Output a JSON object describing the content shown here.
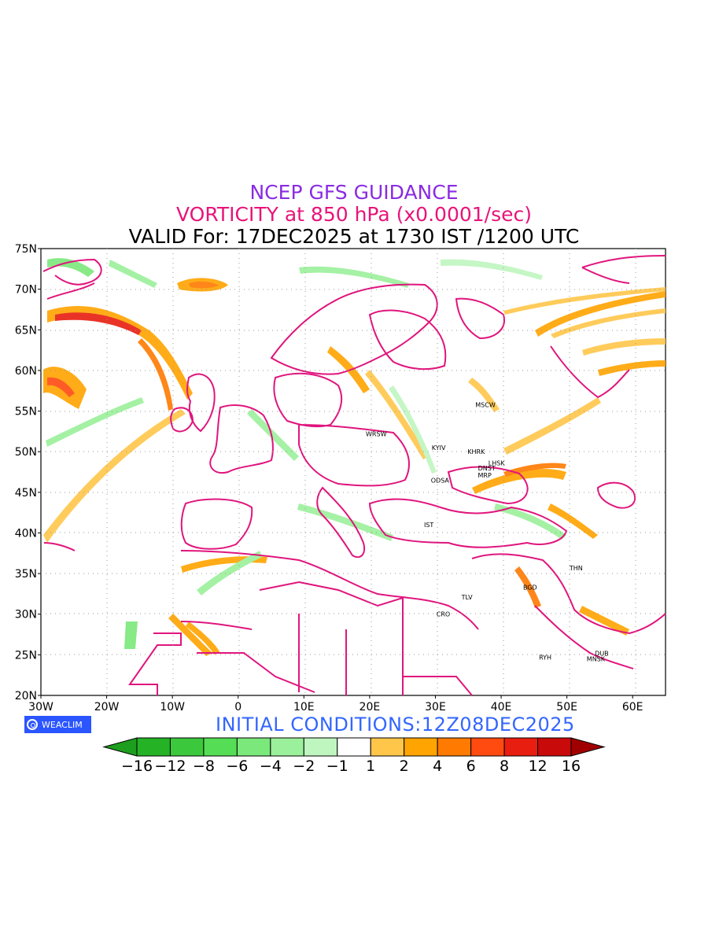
{
  "titles": {
    "line1": "NCEP GFS GUIDANCE",
    "line2": "VORTICITY at 850 hPa (x0.0001/sec)",
    "line3": "VALID For: 17DEC2025 at 1730 IST /1200 UTC"
  },
  "colors": {
    "title1": "#8a2be2",
    "title2": "#e8147a",
    "title3": "#000000",
    "coast": "#e0157d",
    "initial": "#3366ff",
    "badge": "#2b55ff"
  },
  "axes": {
    "lat_labels": [
      "75N",
      "70N",
      "65N",
      "60N",
      "55N",
      "50N",
      "45N",
      "40N",
      "35N",
      "30N",
      "25N",
      "20N"
    ],
    "lon_labels": [
      "30W",
      "20W",
      "10W",
      "0",
      "10E",
      "20E",
      "30E",
      "40E",
      "50E",
      "60E"
    ]
  },
  "cities": [
    {
      "name": "MSCW",
      "lon": 37.6,
      "lat": 55.8
    },
    {
      "name": "WRSW",
      "lon": 21.0,
      "lat": 52.2
    },
    {
      "name": "KYIV",
      "lon": 30.5,
      "lat": 50.5
    },
    {
      "name": "KHRK",
      "lon": 36.2,
      "lat": 50.0
    },
    {
      "name": "LHSK",
      "lon": 39.3,
      "lat": 48.6
    },
    {
      "name": "DNST",
      "lon": 37.8,
      "lat": 48.0
    },
    {
      "name": "MRP",
      "lon": 37.5,
      "lat": 47.1
    },
    {
      "name": "ODSA",
      "lon": 30.7,
      "lat": 46.5
    },
    {
      "name": "IST",
      "lon": 29.0,
      "lat": 41.0
    },
    {
      "name": "TLV",
      "lon": 34.8,
      "lat": 32.1
    },
    {
      "name": "CRO",
      "lon": 31.2,
      "lat": 30.0
    },
    {
      "name": "BGD",
      "lon": 44.4,
      "lat": 33.3
    },
    {
      "name": "THN",
      "lon": 51.4,
      "lat": 35.7
    },
    {
      "name": "MNSK",
      "lon": 54.4,
      "lat": 24.5
    },
    {
      "name": "DUB",
      "lon": 55.3,
      "lat": 25.2
    },
    {
      "name": "RYH",
      "lon": 46.7,
      "lat": 24.7
    }
  ],
  "colorbar": {
    "labels": [
      "−16",
      "−12",
      "−8",
      "−6",
      "−4",
      "−2",
      "−1",
      "1",
      "2",
      "4",
      "6",
      "8",
      "12",
      "16"
    ],
    "colors": [
      "#1e9e1e",
      "#25b225",
      "#3cc83c",
      "#55dd55",
      "#7ae87a",
      "#9bf09b",
      "#bff6bf",
      "#ffffff",
      "#ffc64a",
      "#ffa400",
      "#ff7a00",
      "#ff4a10",
      "#e81e10",
      "#c80a0a",
      "#a00000"
    ]
  },
  "badge": {
    "text": "WEACLIM"
  },
  "initial": {
    "text": "INITIAL CONDITIONS:12Z08DEC2025"
  }
}
